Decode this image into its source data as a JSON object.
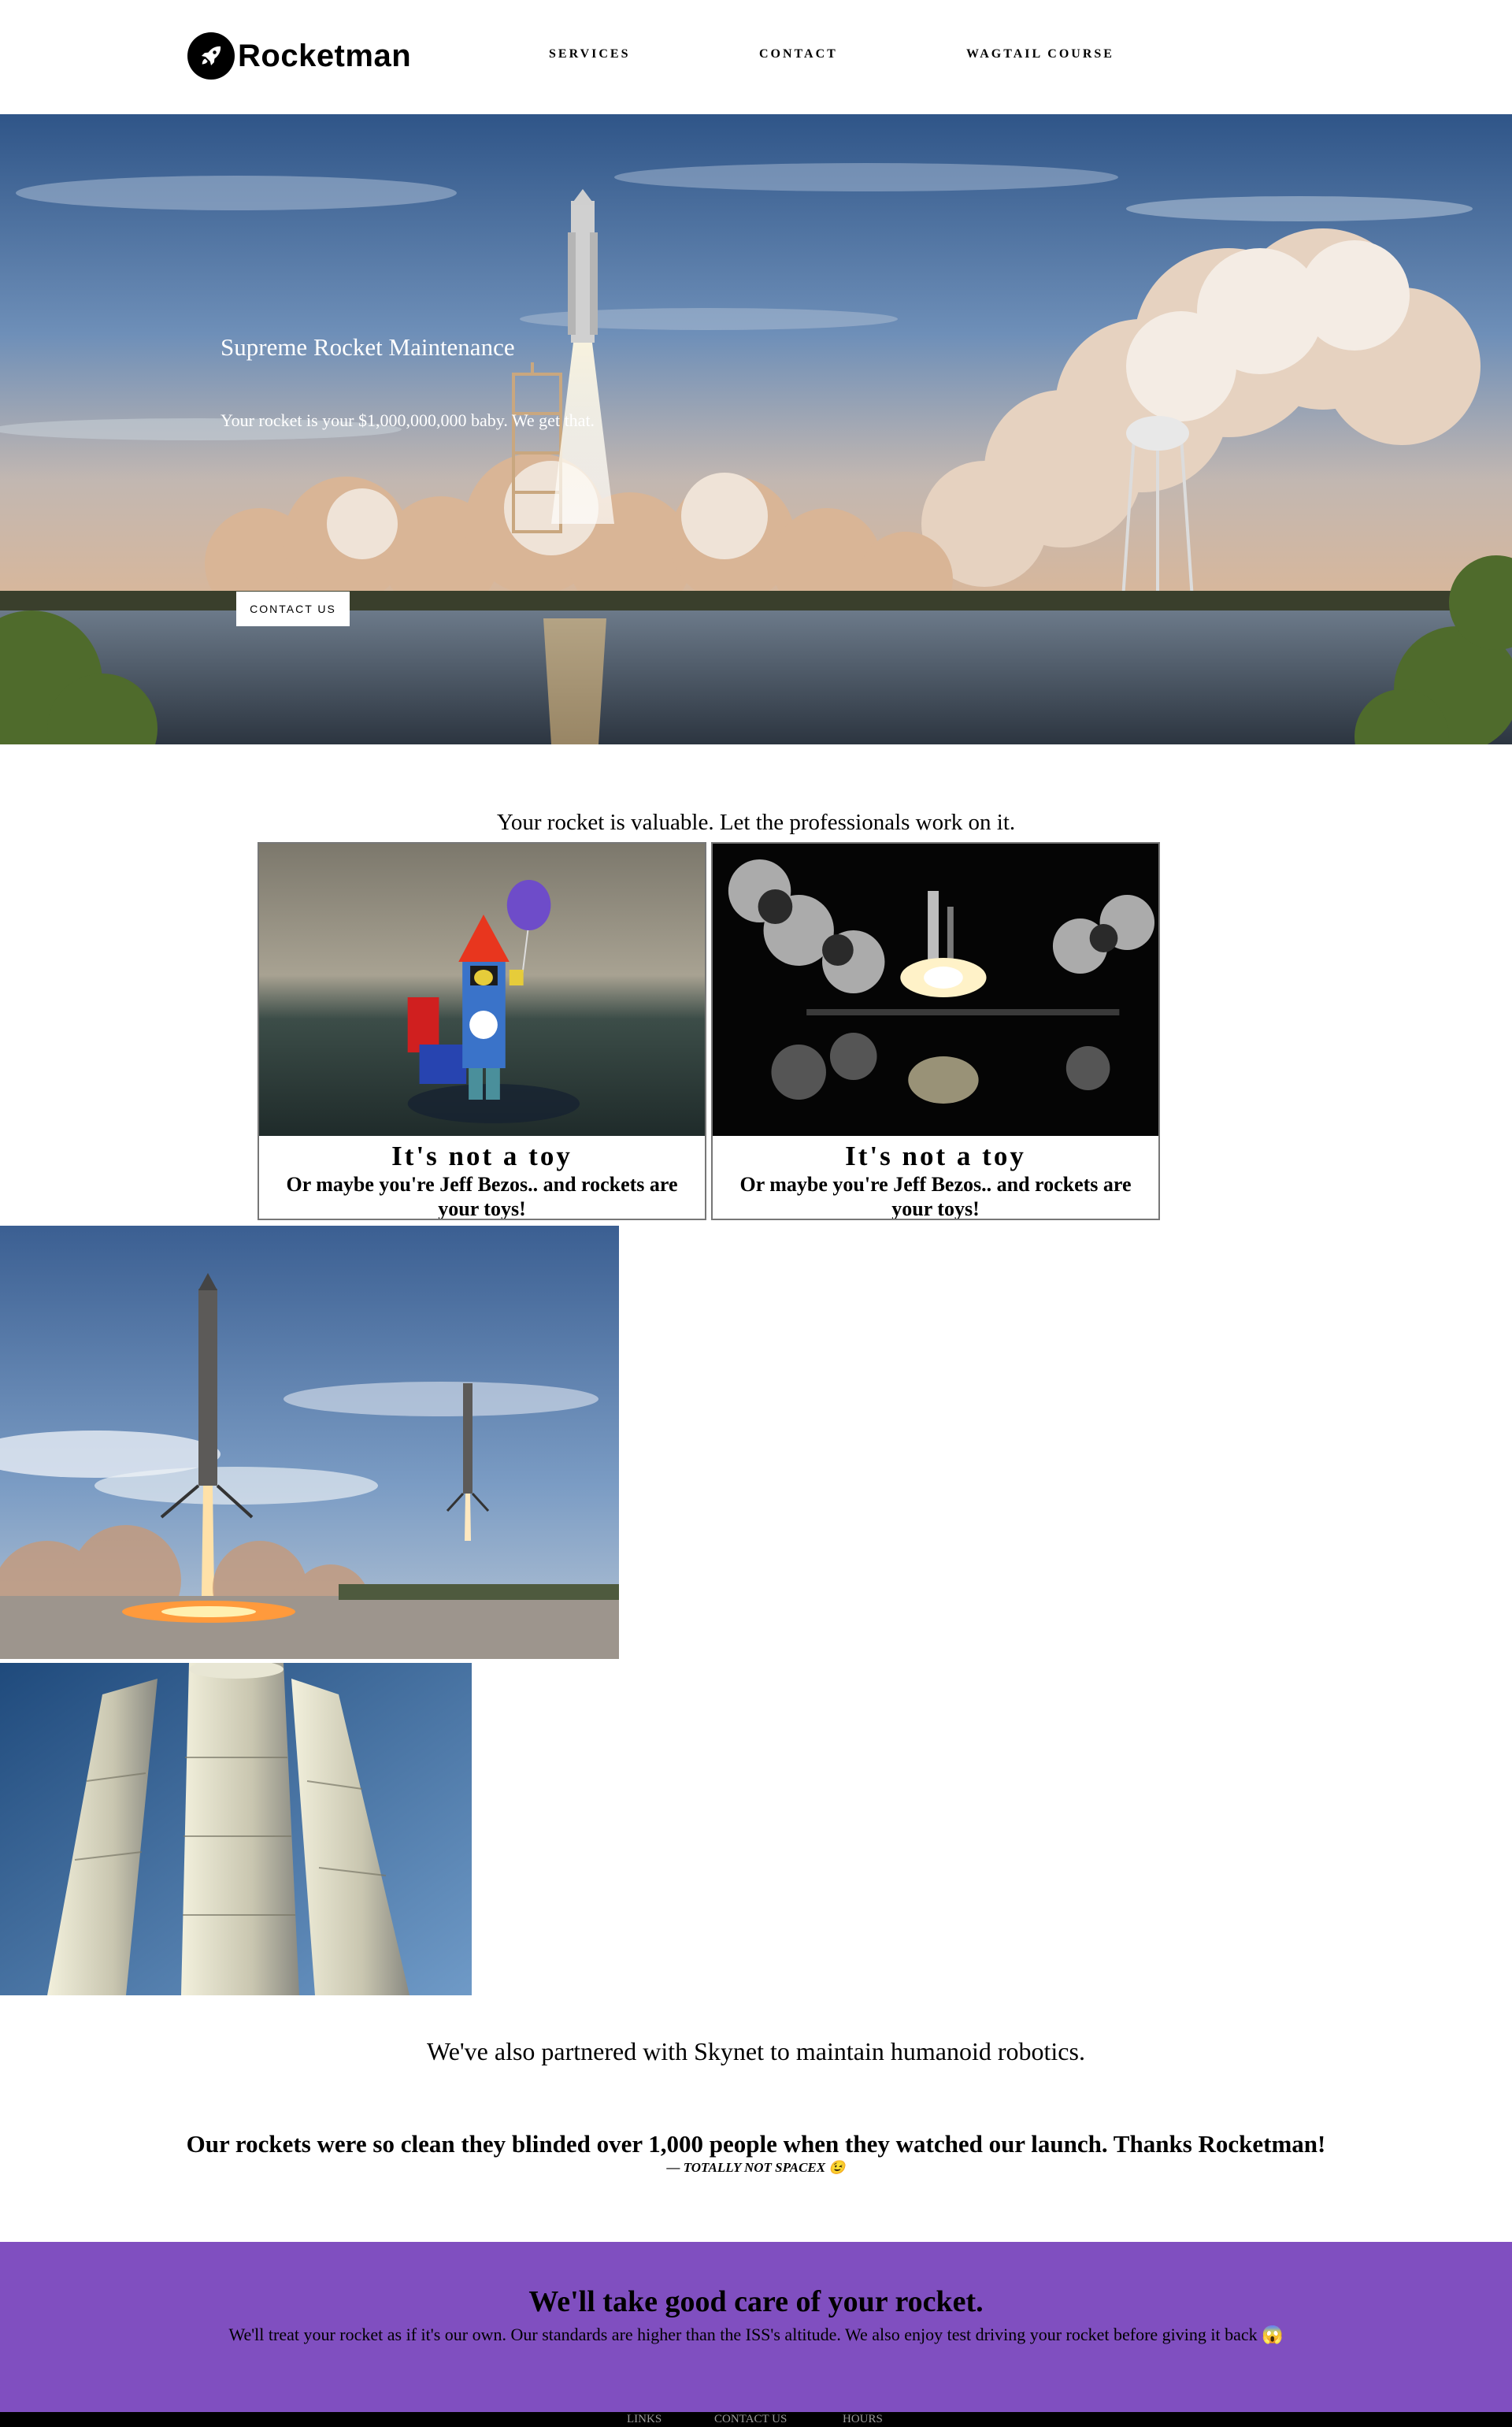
{
  "brand": {
    "name": "Rocketman",
    "icon": "rocket-icon"
  },
  "nav": {
    "items": [
      "SERVICES",
      "CONTACT",
      "WAGTAIL COURSE"
    ]
  },
  "hero": {
    "title": "Supreme Rocket Maintenance",
    "subtitle": "Your rocket is your $1,000,000,000 baby. We get that.",
    "button_label": "CONTACT US"
  },
  "intro": "Your rocket is valuable. Let the professionals work on it.",
  "cards": [
    {
      "title": "It's not a toy",
      "text": "Or maybe you're Jeff Bezos.. and rockets are your toys!"
    },
    {
      "title": "It's not a toy",
      "text": "Or maybe you're Jeff Bezos.. and rockets are your toys!"
    }
  ],
  "partner_text": "We've also partnered with Skynet to maintain humanoid robotics.",
  "testimonial": {
    "quote": "Our rockets were so clean they blinded over 1,000 people when they watched our launch. Thanks Rocketman!",
    "cite": "— TOTALLY NOT SPACEX 😉"
  },
  "cta": {
    "title": "We'll take good care of your rocket.",
    "text": "We'll treat your rocket as if it's our own. Our standards are higher than the ISS's altitude. We also enjoy test driving your rocket before giving it back 😱",
    "color": "#804fc0"
  },
  "footer": {
    "links": [
      "LINKS",
      "CONTACT US",
      "HOURS"
    ]
  }
}
